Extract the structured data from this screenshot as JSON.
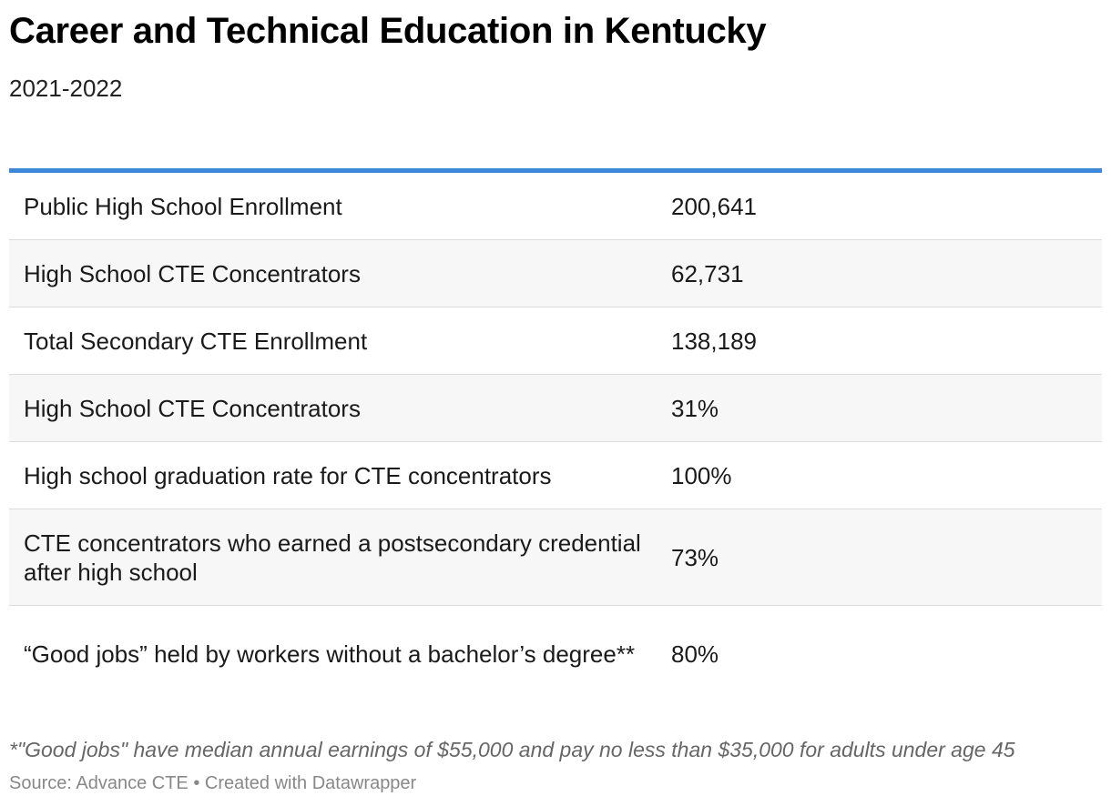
{
  "chart_data": {
    "type": "table",
    "title": "Career and Technical Education in Kentucky",
    "subtitle": "2021-2022",
    "rows": [
      {
        "label": "Public High School Enrollment",
        "value": "200,641"
      },
      {
        "label": "High School CTE Concentrators",
        "value": "62,731"
      },
      {
        "label": "Total Secondary CTE Enrollment",
        "value": "138,189"
      },
      {
        "label": "High School CTE Concentrators",
        "value": "31%"
      },
      {
        "label": "High school graduation rate for CTE concentrators",
        "value": "100%"
      },
      {
        "label": "CTE concentrators who earned a postsecondary credential after high school",
        "value": "73%"
      },
      {
        "label": "“Good jobs” held by workers without a bachelor’s degree**",
        "value": "80%"
      }
    ],
    "note": "*\"Good jobs\" have median annual earnings of $55,000 and pay no less than $35,000 for adults under age 45",
    "source": "Source: Advance CTE • Created with Datawrapper"
  },
  "colors": {
    "accent_rule": "#3d87d8",
    "row_alt_bg": "#f7f7f7",
    "divider": "#dddddd"
  }
}
